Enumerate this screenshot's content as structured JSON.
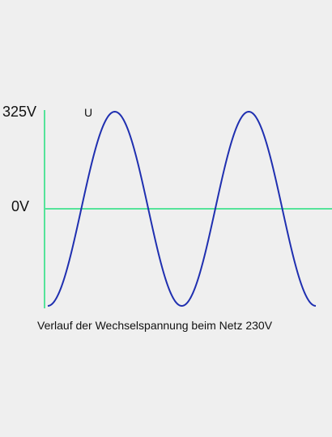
{
  "chart_data": {
    "type": "line",
    "title": "",
    "caption": "Verlauf der Wechselspannung beim Netz 230V",
    "xlabel": "",
    "ylabel": "",
    "yticks": [
      "325V",
      "0V"
    ],
    "ytick_values": [
      325,
      0
    ],
    "ylim": [
      -325,
      325
    ],
    "xlim": [
      0,
      2
    ],
    "grid": false,
    "legend": "none",
    "series": [
      {
        "label": "U",
        "color": "#1f2fb0",
        "function": "u(t) = -325 * cos(2*pi*t)",
        "x": [
          0,
          0.25,
          0.5,
          0.75,
          1,
          1.25,
          1.5,
          1.75,
          2
        ],
        "y": [
          -325,
          0,
          325,
          0,
          -325,
          0,
          325,
          0,
          -325
        ]
      }
    ],
    "colors": {
      "axis": "#55e39a",
      "background": "#efefef"
    }
  }
}
